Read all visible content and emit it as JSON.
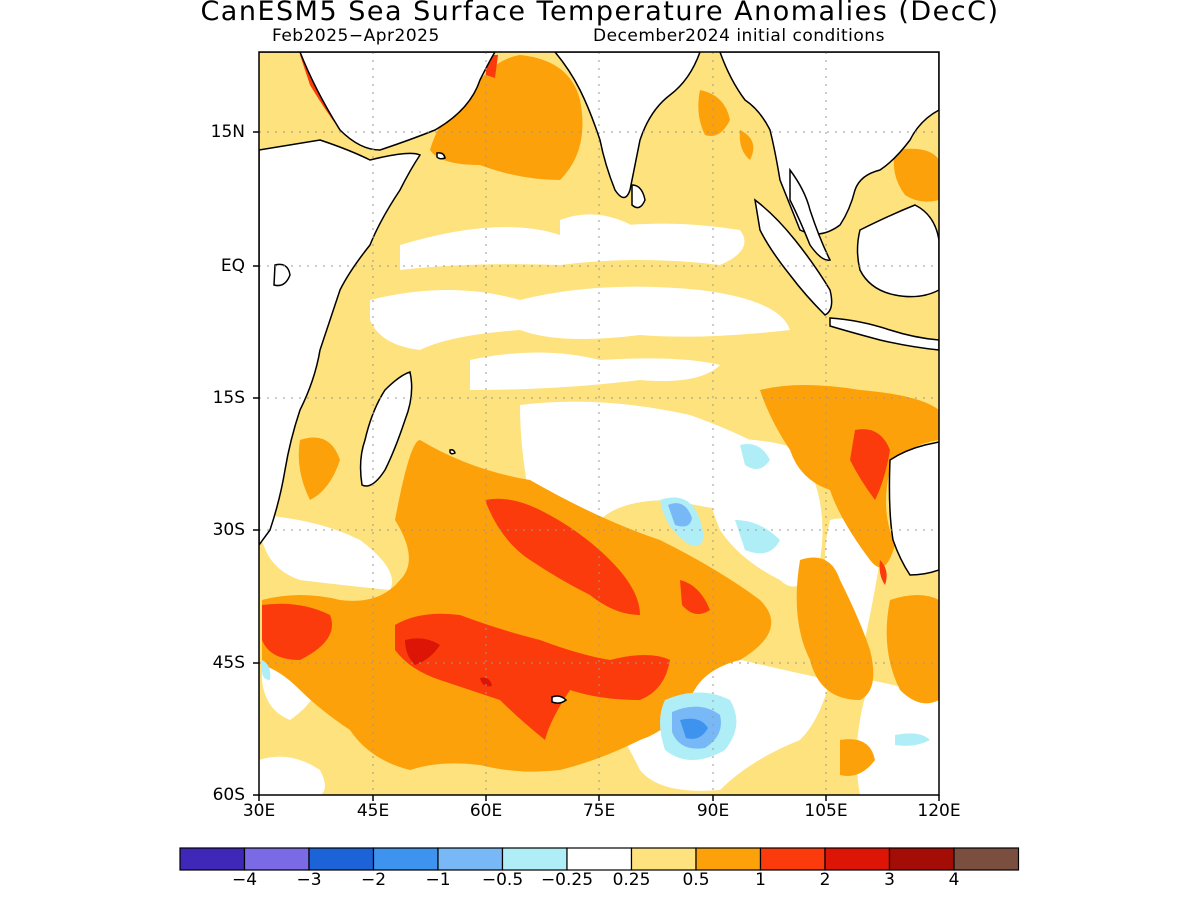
{
  "title": "CanESM5 Sea Surface Temperature Anomalies (DecC)",
  "period": "Feb2025−Apr2025",
  "initial_conditions": "December2024 initial conditions",
  "lat_labels": [
    "15N",
    "EQ",
    "15S",
    "30S",
    "45S",
    "60S"
  ],
  "lon_labels": [
    "30E",
    "45E",
    "60E",
    "75E",
    "90E",
    "105E",
    "120E"
  ],
  "colorbar": {
    "colors": [
      "#3f27b8",
      "#7b6ae6",
      "#1b63d6",
      "#3d93ee",
      "#78b8f7",
      "#b0eef7",
      "#ffffff",
      "#fde27d",
      "#fca10a",
      "#fb3b0c",
      "#dc1506",
      "#a30d05",
      "#7a4f40"
    ],
    "labels": [
      "−4",
      "−3",
      "−2",
      "−1",
      "−0.5",
      "−0.25",
      "0.25",
      "0.5",
      "1",
      "2",
      "3",
      "4"
    ]
  }
}
